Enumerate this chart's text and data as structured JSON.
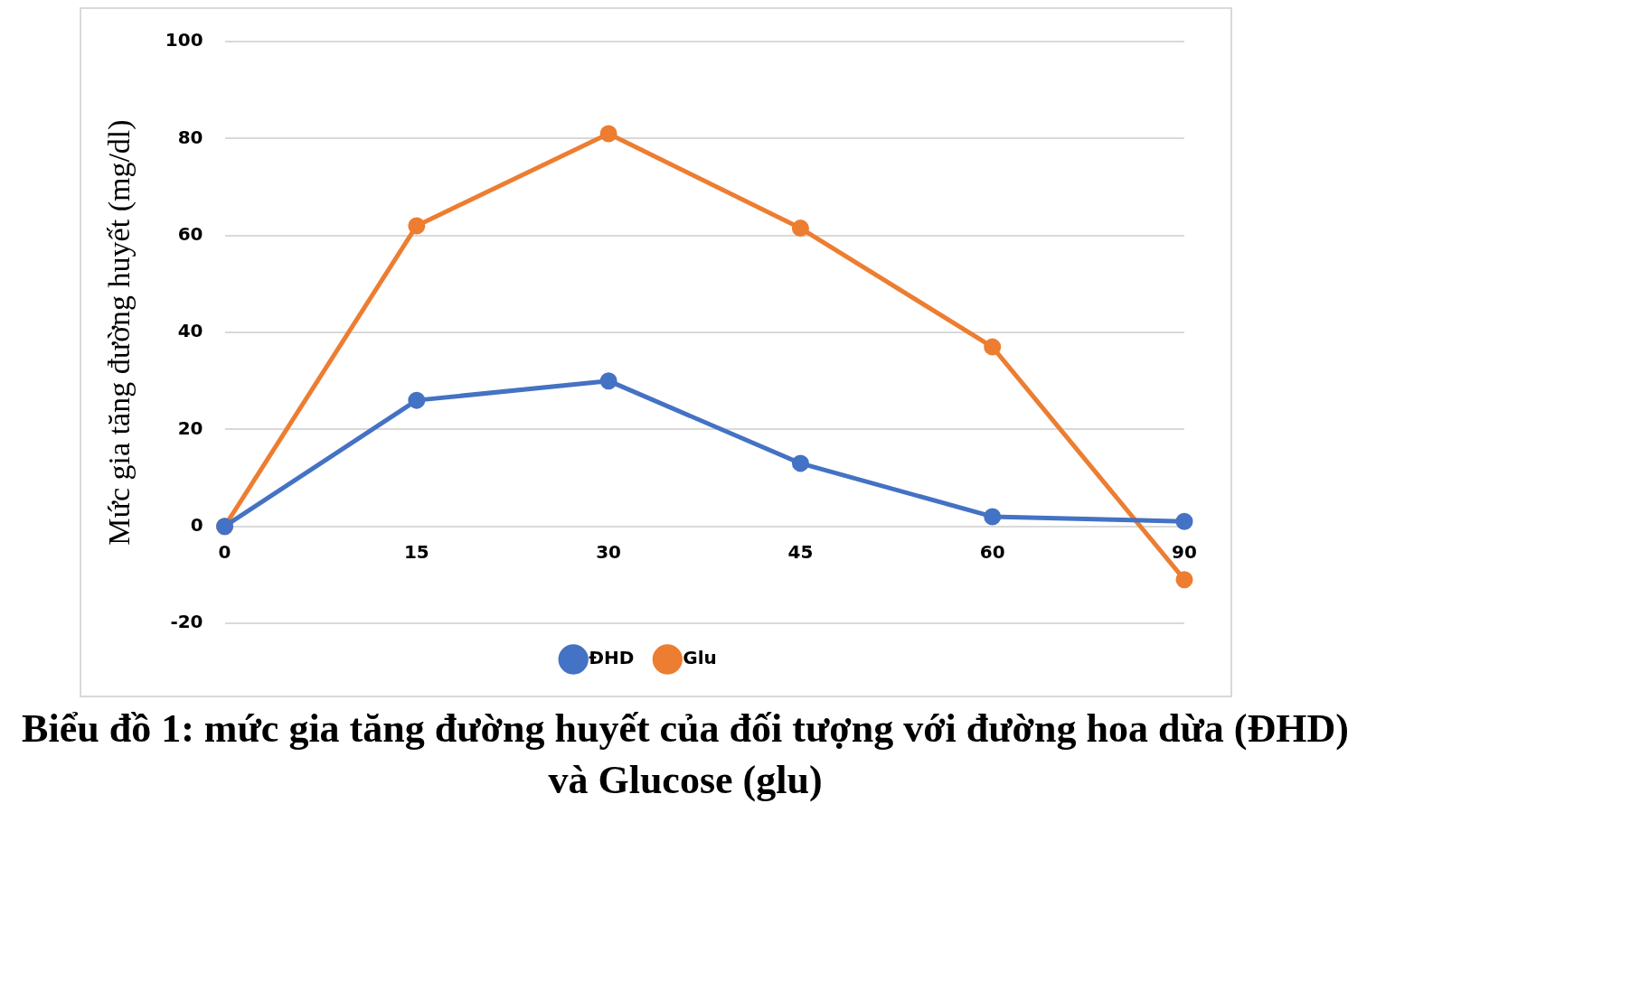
{
  "chart_data": {
    "type": "line",
    "title": "Biểu đồ 1: mức gia tăng đường huyết của đối tượng với đường hoa dừa (ĐHD) và Glucose (glu)",
    "ylabel": "Mức gia tăng đường huyết (mg/dl)",
    "categories": [
      "0",
      "15",
      "30",
      "45",
      "60",
      "90"
    ],
    "series": [
      {
        "name": "ĐHD",
        "color": "#4472c4",
        "values": [
          0,
          26,
          30,
          13,
          2,
          1
        ]
      },
      {
        "name": "Glu",
        "color": "#ed7d31",
        "values": [
          0,
          62,
          81,
          61.5,
          37,
          -11
        ]
      }
    ],
    "ylim": [
      -20,
      100
    ],
    "yticks": [
      -20,
      0,
      20,
      40,
      60,
      80,
      100
    ],
    "grid": "y",
    "legend": "bottom",
    "marker": "circle",
    "line_style": "solid"
  }
}
